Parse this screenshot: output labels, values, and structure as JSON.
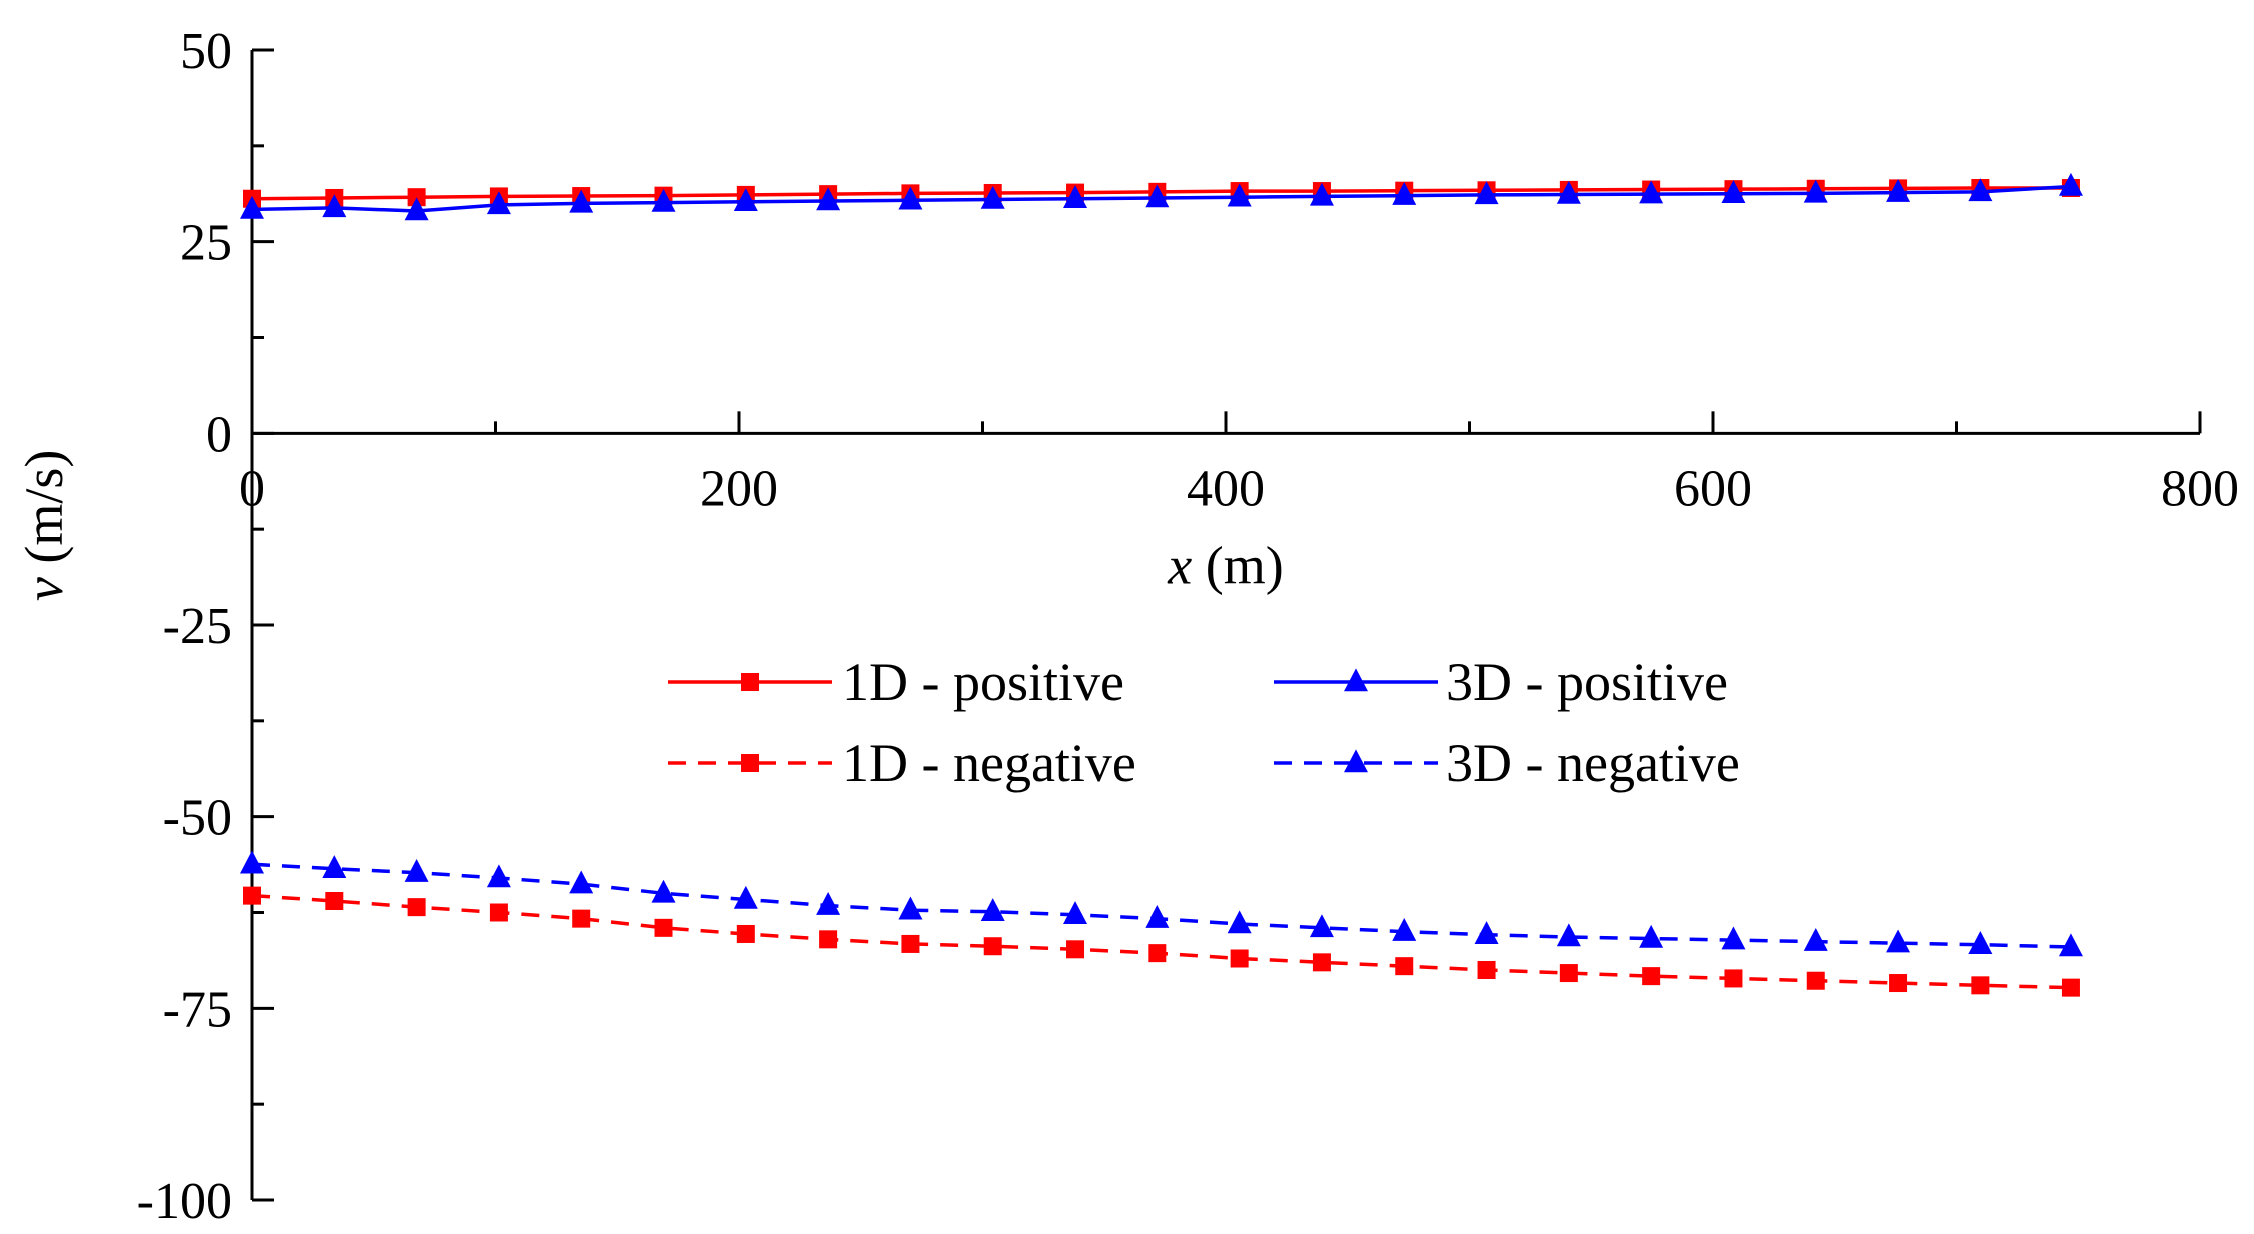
{
  "chart_data": {
    "type": "line",
    "xlabel": {
      "var": "x",
      "unit": " (m)"
    },
    "ylabel": {
      "var": "v",
      "unit": " (m/s)"
    },
    "xlim": [
      0,
      800
    ],
    "ylim": [
      -100,
      50
    ],
    "x_ticks": [
      "0",
      "200",
      "400",
      "600",
      "800"
    ],
    "y_ticks": [
      "50",
      "25",
      "0",
      "-25",
      "-50",
      "-75",
      "-100"
    ],
    "x_tick_values": [
      0,
      200,
      400,
      600,
      800
    ],
    "y_tick_values": [
      50,
      25,
      0,
      -25,
      -50,
      -75,
      -100
    ],
    "x_minor_step": 100,
    "y_minor_step": 12.5,
    "grid": false,
    "legend_position": "center",
    "x": [
      0,
      33.8,
      67.6,
      101.4,
      135.2,
      169,
      202.8,
      236.6,
      270.4,
      304.2,
      338,
      371.8,
      405.6,
      439.4,
      473.2,
      507,
      540.8,
      574.6,
      608.4,
      642.2,
      676,
      709.8,
      747
    ],
    "series": [
      {
        "name": "1D - positive",
        "color": "#ff0000",
        "line": "solid",
        "marker": "square",
        "values": [
          30.6,
          30.7,
          30.8,
          30.9,
          30.95,
          31.0,
          31.1,
          31.2,
          31.3,
          31.35,
          31.4,
          31.5,
          31.6,
          31.6,
          31.65,
          31.7,
          31.75,
          31.8,
          31.85,
          31.9,
          31.95,
          32.0,
          32.0
        ]
      },
      {
        "name": "3D - positive",
        "color": "#0000ff",
        "line": "solid",
        "marker": "triangle",
        "values": [
          29.2,
          29.4,
          29.0,
          29.8,
          30.0,
          30.1,
          30.2,
          30.3,
          30.4,
          30.5,
          30.6,
          30.7,
          30.8,
          30.9,
          31.0,
          31.1,
          31.15,
          31.2,
          31.25,
          31.3,
          31.4,
          31.5,
          32.2
        ]
      },
      {
        "name": "1D - negative",
        "color": "#ff0000",
        "line": "dashed",
        "marker": "square",
        "values": [
          -60.3,
          -61.0,
          -61.8,
          -62.5,
          -63.3,
          -64.5,
          -65.3,
          -66.0,
          -66.6,
          -66.9,
          -67.3,
          -67.8,
          -68.5,
          -69.0,
          -69.5,
          -70.0,
          -70.4,
          -70.8,
          -71.1,
          -71.4,
          -71.7,
          -72.0,
          -72.3
        ]
      },
      {
        "name": "3D - negative",
        "color": "#0000ff",
        "line": "dashed",
        "marker": "triangle",
        "values": [
          -56.2,
          -56.8,
          -57.3,
          -58.0,
          -58.8,
          -60.0,
          -60.8,
          -61.6,
          -62.2,
          -62.4,
          -62.8,
          -63.3,
          -64.0,
          -64.5,
          -65.0,
          -65.4,
          -65.7,
          -65.9,
          -66.1,
          -66.3,
          -66.5,
          -66.7,
          -67.0
        ]
      }
    ]
  }
}
